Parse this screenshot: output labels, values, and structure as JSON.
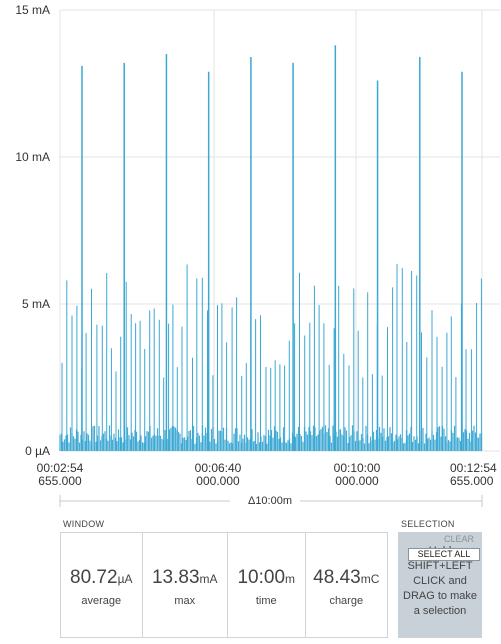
{
  "chart_data": {
    "type": "line",
    "y_ticks": [
      "15 mA",
      "10 mA",
      "5 mA",
      "0 µA"
    ],
    "ylim_mA": [
      0,
      15
    ],
    "x_ticks": [
      {
        "time": "00:02:54",
        "ms": "655.000"
      },
      {
        "time": "00:06:40",
        "ms": "000.000"
      },
      {
        "time": "00:10:00",
        "ms": "000.000"
      },
      {
        "time": "00:12:54",
        "ms": "655.000"
      }
    ],
    "grid": true,
    "color": "#3ba8d3",
    "spikes_mA": [
      13.1,
      13.2,
      13.5,
      12.9,
      13.4,
      13.2,
      13.8,
      12.6,
      13.4,
      12.9
    ],
    "baseline_mA": 0.8,
    "pulse_range_mA": [
      2.5,
      6.5
    ]
  },
  "delta_label": "Δ10:00m",
  "window": {
    "title": "WINDOW",
    "stats": [
      {
        "value": "80.72",
        "unit": "µA",
        "label": "average"
      },
      {
        "value": "13.83",
        "unit": "mA",
        "label": "max"
      },
      {
        "value": "10:00",
        "unit": "m",
        "label": "time"
      },
      {
        "value": "48.43",
        "unit": "mC",
        "label": "charge"
      }
    ]
  },
  "selection": {
    "title": "SELECTION",
    "clear_label": "CLEAR",
    "select_all_label": "SELECT ALL",
    "hint": "Hold SHIFT+LEFT CLICK and DRAG to make a selection"
  }
}
